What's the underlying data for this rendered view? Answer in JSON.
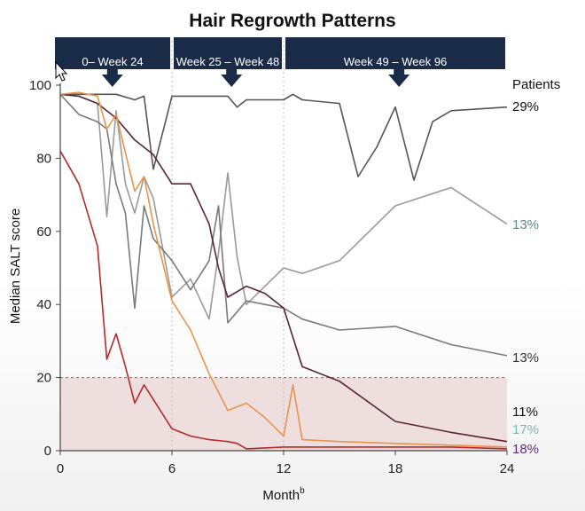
{
  "chart_data": {
    "type": "line",
    "title": "Hair Regrowth Patterns",
    "xlabel": "Month",
    "xlabel_superscript": "b",
    "ylabel": "Median SALT score",
    "xlim": [
      0,
      24
    ],
    "ylim": [
      0,
      100
    ],
    "x_ticks": [
      0,
      6,
      12,
      18,
      24
    ],
    "y_ticks": [
      0,
      20,
      40,
      60,
      80,
      100
    ],
    "threshold": {
      "y": 20,
      "shade_color": "#efdede",
      "line_color": "#c0504d"
    },
    "periods": [
      {
        "label": "0– Week 24",
        "start": 0,
        "end": 6,
        "arrow_x": 2.8
      },
      {
        "label": "Week 25 – Week 48",
        "start": 6,
        "end": 12,
        "arrow_x": 9.2
      },
      {
        "label": "Week 49 – Week 96",
        "start": 12,
        "end": 24,
        "arrow_x": 18.2
      }
    ],
    "banner_color": "#1a2b48",
    "legend_title": "Patients",
    "series": [
      {
        "label": "29%",
        "color": "#555555",
        "label_color": "#111111",
        "x": [
          0,
          1,
          2,
          3,
          4,
          4.5,
          5,
          6,
          9,
          9.5,
          10,
          11,
          12,
          12.5,
          13,
          15,
          16,
          17,
          18,
          19,
          20,
          21,
          24
        ],
        "y": [
          97.5,
          97.5,
          97.5,
          97.5,
          96,
          97,
          77,
          97,
          97,
          94,
          96,
          96,
          96,
          97.5,
          96,
          95,
          75,
          83,
          94,
          74,
          90,
          93,
          94
        ]
      },
      {
        "label": "13%",
        "color": "#9a9a9a",
        "label_color": "#5a8a8a",
        "x": [
          0,
          1,
          2,
          2.5,
          3,
          3.5,
          4,
          4.5,
          5,
          6,
          7,
          8,
          8.5,
          9,
          9.5,
          10,
          11,
          12,
          13,
          15,
          18,
          21,
          24
        ],
        "y": [
          97.5,
          97,
          95,
          64,
          93,
          73,
          65,
          75,
          69,
          42,
          47,
          36,
          54,
          76,
          53,
          40,
          45,
          50,
          48.5,
          52,
          67,
          72,
          62
        ]
      },
      {
        "label": "13%",
        "color": "#7a7a7a",
        "label_color": "#333333",
        "x": [
          0,
          1,
          2,
          2.5,
          3,
          3.5,
          4,
          4.5,
          5,
          6,
          7,
          8,
          8.5,
          9,
          10,
          11,
          12,
          13,
          15,
          18,
          21,
          24
        ],
        "y": [
          97.5,
          92,
          90,
          88,
          73,
          65,
          39,
          67,
          58,
          52,
          44,
          52,
          67,
          35,
          41,
          40,
          39,
          36,
          33,
          34,
          29,
          26
        ]
      },
      {
        "label": "11%",
        "color": "#5a2430",
        "label_color": "#111111",
        "x": [
          0,
          1,
          2,
          3,
          4,
          5,
          6,
          7,
          8,
          8.5,
          9,
          10,
          11,
          12,
          13,
          15,
          18,
          21,
          24
        ],
        "y": [
          97.5,
          97,
          95,
          91,
          85,
          81,
          73,
          73,
          62,
          50,
          42,
          45,
          43,
          39,
          23,
          19,
          8,
          5,
          2.5
        ]
      },
      {
        "label": "17%",
        "color": "#e8944a",
        "label_color": "#7fb3b3",
        "x": [
          0,
          1,
          2,
          2.5,
          3,
          4,
          4.5,
          5,
          6,
          7,
          8,
          9,
          10,
          11,
          12,
          12.5,
          13,
          15,
          18,
          21,
          24
        ],
        "y": [
          97.5,
          98,
          97,
          88,
          92,
          71,
          75,
          62,
          41,
          33,
          21,
          11,
          13,
          9,
          4,
          18,
          3,
          2.5,
          2,
          1.5,
          1
        ]
      },
      {
        "label": "18%",
        "color": "#b22a2a",
        "label_color": "#5a2a7a",
        "x": [
          0,
          1,
          2,
          2.5,
          3,
          3.5,
          4,
          4.5,
          5,
          6,
          7,
          8,
          9,
          9.5,
          10,
          12,
          15,
          18,
          21,
          24
        ],
        "y": [
          82,
          73,
          56,
          25,
          32,
          23,
          13,
          18,
          14,
          6,
          4,
          3,
          2.5,
          2,
          0.5,
          1,
          1,
          1,
          1,
          0.5
        ]
      }
    ]
  }
}
